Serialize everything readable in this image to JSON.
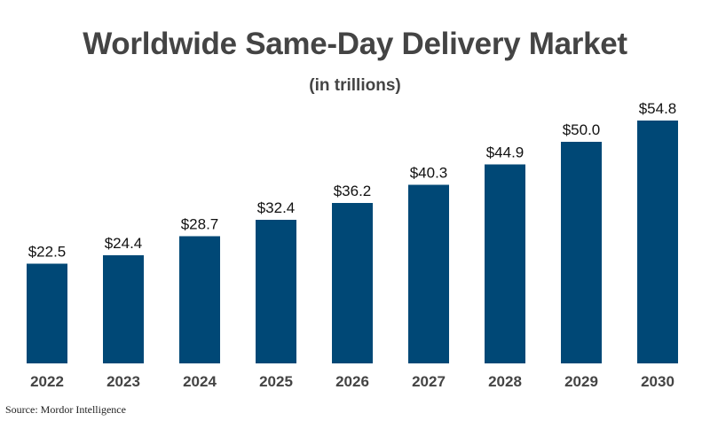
{
  "chart_data": {
    "type": "bar",
    "title": "Worldwide Same-Day Delivery Market",
    "subtitle": "(in trillions)",
    "categories": [
      "2022",
      "2023",
      "2024",
      "2025",
      "2026",
      "2027",
      "2028",
      "2029",
      "2030"
    ],
    "values": [
      22.5,
      24.4,
      28.7,
      32.4,
      36.2,
      40.3,
      44.9,
      50.0,
      54.8
    ],
    "value_labels": [
      "$22.5",
      "$24.4",
      "$28.7",
      "$32.4",
      "$36.2",
      "$40.3",
      "$44.9",
      "$50.0",
      "$54.8"
    ],
    "xlabel": "",
    "ylabel": "",
    "ylim": [
      0,
      60
    ],
    "grid": false,
    "legend": "none",
    "bar_color": "#004876"
  },
  "source": "Source: Mordor Intelligence"
}
